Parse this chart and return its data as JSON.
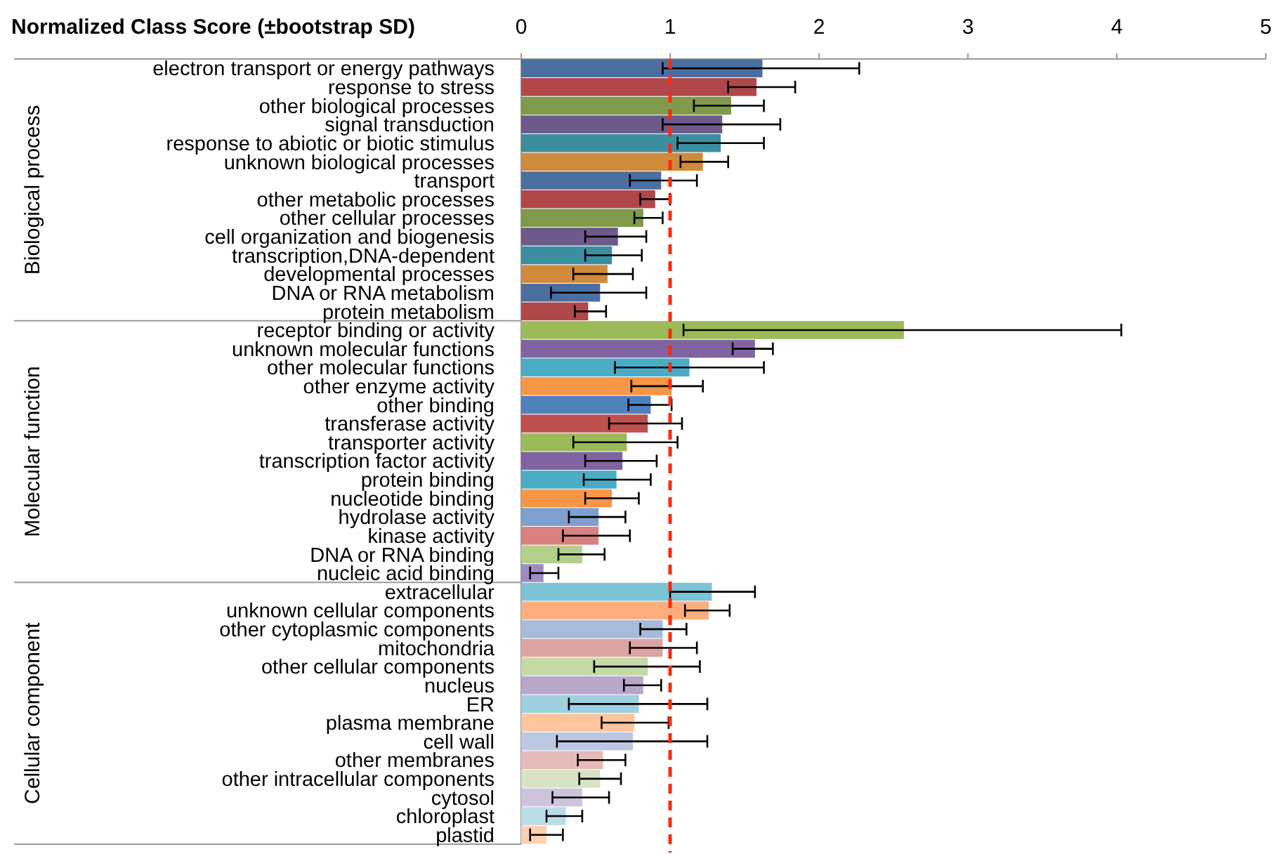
{
  "chart_data": {
    "type": "bar",
    "orientation": "horizontal",
    "title": "Normalized Class Score (±bootstrap SD)",
    "categories": [
      "electron transport or energy pathways",
      "response to stress",
      "other biological processes",
      "signal transduction",
      "response to abiotic or biotic stimulus",
      "unknown biological processes",
      "transport",
      "other metabolic processes",
      "other cellular processes",
      "cell organization and biogenesis",
      "transcription,DNA-dependent",
      "developmental processes",
      "DNA or RNA metabolism",
      "protein metabolism",
      "receptor binding or activity",
      "unknown molecular functions",
      "other molecular functions",
      "other enzyme activity",
      "other binding",
      "transferase activity",
      "transporter activity",
      "transcription factor activity",
      "protein binding",
      "nucleotide binding",
      "hydrolase activity",
      "kinase activity",
      "DNA or RNA binding",
      "nucleic acid binding",
      "extracellular",
      "unknown cellular components",
      "other cytoplasmic components",
      "mitochondria",
      "other cellular components",
      "nucleus",
      "ER",
      "plasma membrane",
      "cell wall",
      "other membranes",
      "other intracellular components",
      "cytosol",
      "chloroplast",
      "plastid"
    ],
    "series": [
      {
        "values": [
          1.62,
          1.58,
          1.41,
          1.35,
          1.34,
          1.22,
          0.94,
          0.9,
          0.82,
          0.65,
          0.61,
          0.58,
          0.53,
          0.45,
          null,
          null,
          null,
          null,
          null,
          null,
          null,
          null,
          null,
          null,
          null,
          null,
          null,
          null,
          null,
          null,
          null,
          null,
          null,
          null,
          null,
          null,
          null,
          null,
          null,
          null,
          null,
          null
        ],
        "colors": [
          "#4a6fa0",
          "#b0474a",
          "#7f9a4b",
          "#6e5a8a",
          "#3b8ea0",
          "#d08a3c",
          "#4a6fa0",
          "#b0474a",
          "#7f9a4b",
          "#6e5a8a",
          "#3b8ea0",
          "#d08a3c",
          "#4a6fa0",
          "#b0474a",
          null,
          null,
          null,
          null,
          null,
          null,
          null,
          null,
          null,
          null,
          null,
          null,
          null,
          null,
          null,
          null,
          null,
          null,
          null,
          null,
          null,
          null,
          null,
          null,
          null,
          null,
          null,
          null
        ],
        "errors": [
          [
            0.95,
            2.27
          ],
          [
            1.39,
            1.84
          ],
          [
            1.16,
            1.63
          ],
          [
            0.95,
            1.74
          ],
          [
            1.05,
            1.63
          ],
          [
            1.07,
            1.39
          ],
          [
            0.73,
            1.18
          ],
          [
            0.8,
            1.0
          ],
          [
            0.76,
            0.95
          ],
          [
            0.43,
            0.84
          ],
          [
            0.43,
            0.81
          ],
          [
            0.35,
            0.75
          ],
          [
            0.2,
            0.84
          ],
          [
            0.36,
            0.57
          ],
          null,
          null,
          null,
          null,
          null,
          null,
          null,
          null,
          null,
          null,
          null,
          null,
          null,
          null,
          null,
          null,
          null,
          null,
          null,
          null,
          null,
          null,
          null,
          null,
          null,
          null,
          null,
          null
        ]
      },
      {
        "values": [
          null,
          null,
          null,
          null,
          null,
          null,
          null,
          null,
          null,
          null,
          null,
          null,
          null,
          null,
          2.57,
          1.57,
          1.13,
          1.01,
          0.87,
          0.85,
          0.71,
          0.68,
          0.64,
          0.61,
          0.52,
          0.52,
          0.41,
          0.15,
          null,
          null,
          null,
          null,
          null,
          null,
          null,
          null,
          null,
          null,
          null,
          null,
          null,
          null
        ],
        "colors": [
          null,
          null,
          null,
          null,
          null,
          null,
          null,
          null,
          null,
          null,
          null,
          null,
          null,
          null,
          "#9bbb59",
          "#8064a2",
          "#4bacc6",
          "#f79646",
          "#4f81bd",
          "#c0504d",
          "#9bbb59",
          "#8064a2",
          "#4bacc6",
          "#f79646",
          "#7f9fcf",
          "#d98080",
          "#b3d08a",
          "#a08cc0",
          null,
          null,
          null,
          null,
          null,
          null,
          null,
          null,
          null,
          null,
          null,
          null,
          null,
          null
        ],
        "errors": [
          null,
          null,
          null,
          null,
          null,
          null,
          null,
          null,
          null,
          null,
          null,
          null,
          null,
          null,
          [
            1.09,
            4.03
          ],
          [
            1.42,
            1.69
          ],
          [
            0.63,
            1.63
          ],
          [
            0.74,
            1.22
          ],
          [
            0.72,
            1.01
          ],
          [
            0.59,
            1.08
          ],
          [
            0.35,
            1.05
          ],
          [
            0.43,
            0.91
          ],
          [
            0.42,
            0.87
          ],
          [
            0.43,
            0.79
          ],
          [
            0.32,
            0.7
          ],
          [
            0.28,
            0.73
          ],
          [
            0.25,
            0.56
          ],
          [
            0.06,
            0.25
          ],
          null,
          null,
          null,
          null,
          null,
          null,
          null,
          null,
          null,
          null,
          null,
          null,
          null,
          null
        ]
      },
      {
        "values": [
          null,
          null,
          null,
          null,
          null,
          null,
          null,
          null,
          null,
          null,
          null,
          null,
          null,
          null,
          null,
          null,
          null,
          null,
          null,
          null,
          null,
          null,
          null,
          null,
          null,
          null,
          null,
          null,
          1.28,
          1.26,
          0.95,
          0.95,
          0.85,
          0.82,
          0.79,
          0.76,
          0.75,
          0.55,
          0.53,
          0.41,
          0.3,
          0.17
        ],
        "colors": [
          null,
          null,
          null,
          null,
          null,
          null,
          null,
          null,
          null,
          null,
          null,
          null,
          null,
          null,
          null,
          null,
          null,
          null,
          null,
          null,
          null,
          null,
          null,
          null,
          null,
          null,
          null,
          null,
          "#7cc3d6",
          "#fbae7c",
          "#a7bbdb",
          "#dca3a3",
          "#c5d9a5",
          "#b8a7c9",
          "#9fd0df",
          "#fcc59b",
          "#bac8e1",
          "#e6bab9",
          "#d7e3c2",
          "#cdc3dc",
          "#b9dde8",
          "#fdd0b0"
        ],
        "errors": [
          null,
          null,
          null,
          null,
          null,
          null,
          null,
          null,
          null,
          null,
          null,
          null,
          null,
          null,
          null,
          null,
          null,
          null,
          null,
          null,
          null,
          null,
          null,
          null,
          null,
          null,
          null,
          null,
          [
            1.0,
            1.57
          ],
          [
            1.1,
            1.4
          ],
          [
            0.8,
            1.11
          ],
          [
            0.73,
            1.18
          ],
          [
            0.49,
            1.2
          ],
          [
            0.69,
            0.94
          ],
          [
            0.32,
            1.25
          ],
          [
            0.54,
            0.99
          ],
          [
            0.24,
            1.25
          ],
          [
            0.38,
            0.7
          ],
          [
            0.39,
            0.67
          ],
          [
            0.21,
            0.59
          ],
          [
            0.17,
            0.41
          ],
          [
            0.06,
            0.28
          ]
        ]
      }
    ],
    "xlim": [
      0,
      5
    ],
    "xticks": [
      0,
      1,
      2,
      3,
      4,
      5
    ],
    "grid": false,
    "annotations": [
      "Biological process",
      "Molecular function",
      "Cellular component"
    ],
    "ref_lines": [
      {
        "axis": "x",
        "value": 1,
        "color": "#ff2a0a",
        "line_style": "dashed"
      }
    ]
  }
}
